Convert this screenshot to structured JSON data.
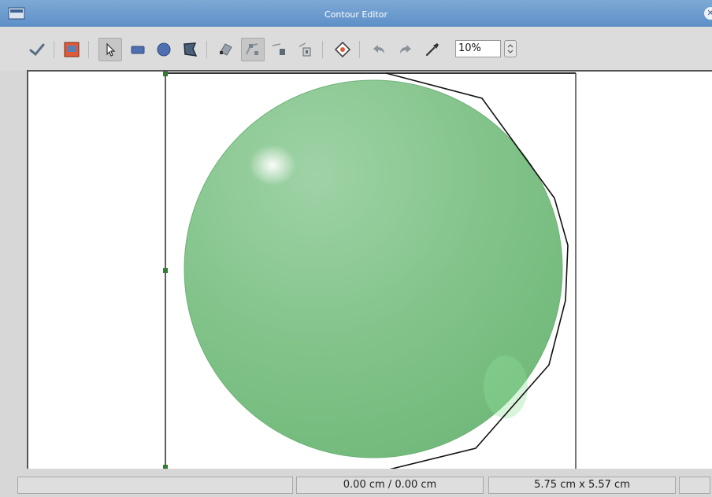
{
  "window": {
    "title": "Contour Editor",
    "close_glyph": "✕"
  },
  "toolbar": {
    "items": [
      {
        "name": "apply-icon"
      },
      {
        "name": "workspace-icon"
      },
      {
        "name": "select-icon",
        "pressed": true
      },
      {
        "name": "rectangle-icon"
      },
      {
        "name": "ellipse-icon"
      },
      {
        "name": "polygon-icon"
      },
      {
        "name": "edit-points-icon"
      },
      {
        "name": "move-points-icon",
        "pressed": true
      },
      {
        "name": "insert-points-icon"
      },
      {
        "name": "delete-points-icon"
      },
      {
        "name": "auto-contour-icon"
      },
      {
        "name": "undo-icon"
      },
      {
        "name": "redo-icon"
      },
      {
        "name": "pipette-icon"
      }
    ],
    "zoom_value": "10%"
  },
  "colors": {
    "sphere": "#7fc487",
    "contour": "#111111",
    "handle": "#2e7d32"
  },
  "status": {
    "position": "0.00 cm / 0.00 cm",
    "size": "5.75 cm x 5.57 cm"
  }
}
